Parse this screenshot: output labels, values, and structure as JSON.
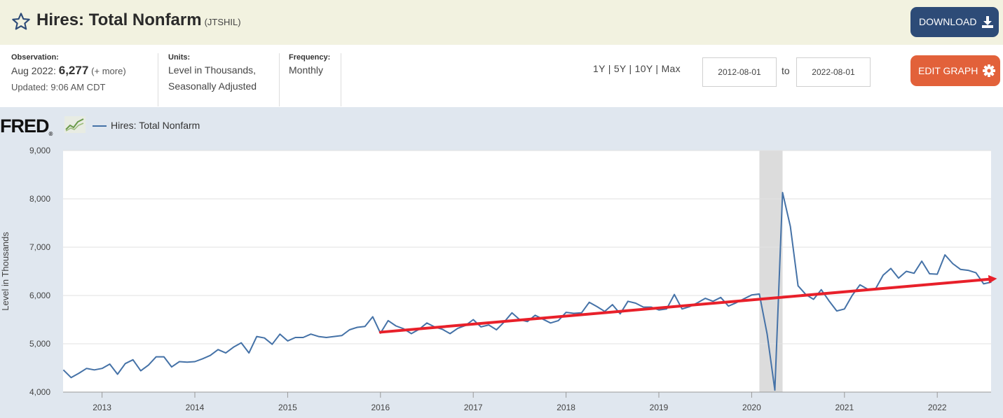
{
  "header": {
    "title": "Hires: Total Nonfarm",
    "series_id": "(JTSHIL)",
    "download_label": "DOWNLOAD"
  },
  "meta": {
    "observation_label": "Observation:",
    "observation_period": "Aug 2022:",
    "observation_value": "6,277",
    "more_link": "(+ more)",
    "updated": "Updated: 9:06 AM CDT",
    "units_label": "Units:",
    "units_line1": "Level in Thousands,",
    "units_line2": "Seasonally Adjusted",
    "frequency_label": "Frequency:",
    "frequency_value": "Monthly"
  },
  "controls": {
    "ranges": [
      "1Y",
      "5Y",
      "10Y",
      "Max"
    ],
    "range_sep": "|",
    "date_from": "2012-08-01",
    "to_label": "to",
    "date_to": "2022-08-01",
    "edit_label": "EDIT GRAPH"
  },
  "brand": {
    "logo_text": "FRED",
    "logo_mark": "®"
  },
  "colors": {
    "series": "#4572a7",
    "trend": "#e8202a",
    "recession": "#dcdcdc",
    "download_bg": "#2d4b77",
    "edit_bg": "#e2613a"
  },
  "chart_data": {
    "type": "line",
    "title": "",
    "legend": "Hires: Total Nonfarm",
    "ylabel": "Level in Thousands",
    "xlabel": "",
    "ylim": [
      4000,
      9000
    ],
    "yticks": [
      "4,000",
      "5,000",
      "6,000",
      "7,000",
      "8,000",
      "9,000"
    ],
    "xticks": [
      "2013",
      "2014",
      "2015",
      "2016",
      "2017",
      "2018",
      "2019",
      "2020",
      "2021",
      "2022"
    ],
    "start": "2012-08",
    "x_start_year": 2012.58,
    "x_end_year": 2022.58,
    "recession": {
      "start": "2020-02",
      "end": "2020-04"
    },
    "series": [
      {
        "name": "Hires: Total Nonfarm",
        "values": [
          4460,
          4300,
          4390,
          4490,
          4460,
          4490,
          4580,
          4370,
          4590,
          4670,
          4440,
          4560,
          4730,
          4730,
          4520,
          4630,
          4620,
          4630,
          4690,
          4760,
          4880,
          4810,
          4930,
          5020,
          4810,
          5150,
          5120,
          4990,
          5200,
          5060,
          5130,
          5130,
          5200,
          5150,
          5130,
          5150,
          5170,
          5290,
          5340,
          5360,
          5560,
          5220,
          5480,
          5370,
          5310,
          5210,
          5300,
          5430,
          5350,
          5300,
          5210,
          5320,
          5380,
          5500,
          5350,
          5390,
          5290,
          5450,
          5640,
          5500,
          5460,
          5590,
          5510,
          5430,
          5480,
          5650,
          5630,
          5640,
          5860,
          5770,
          5670,
          5810,
          5620,
          5880,
          5840,
          5760,
          5760,
          5700,
          5720,
          6020,
          5720,
          5770,
          5850,
          5940,
          5880,
          5960,
          5780,
          5850,
          5930,
          6010,
          6030,
          5200,
          4040,
          8130,
          7430,
          6200,
          6020,
          5920,
          6120,
          5890,
          5680,
          5720,
          6000,
          6220,
          6130,
          6130,
          6420,
          6560,
          6360,
          6500,
          6460,
          6710,
          6450,
          6440,
          6840,
          6660,
          6540,
          6520,
          6470,
          6240,
          6277
        ]
      }
    ],
    "trend_line": {
      "start": "2016-01",
      "start_value": 5240,
      "end": "2022-08",
      "end_value": 6350,
      "arrow": true
    }
  }
}
